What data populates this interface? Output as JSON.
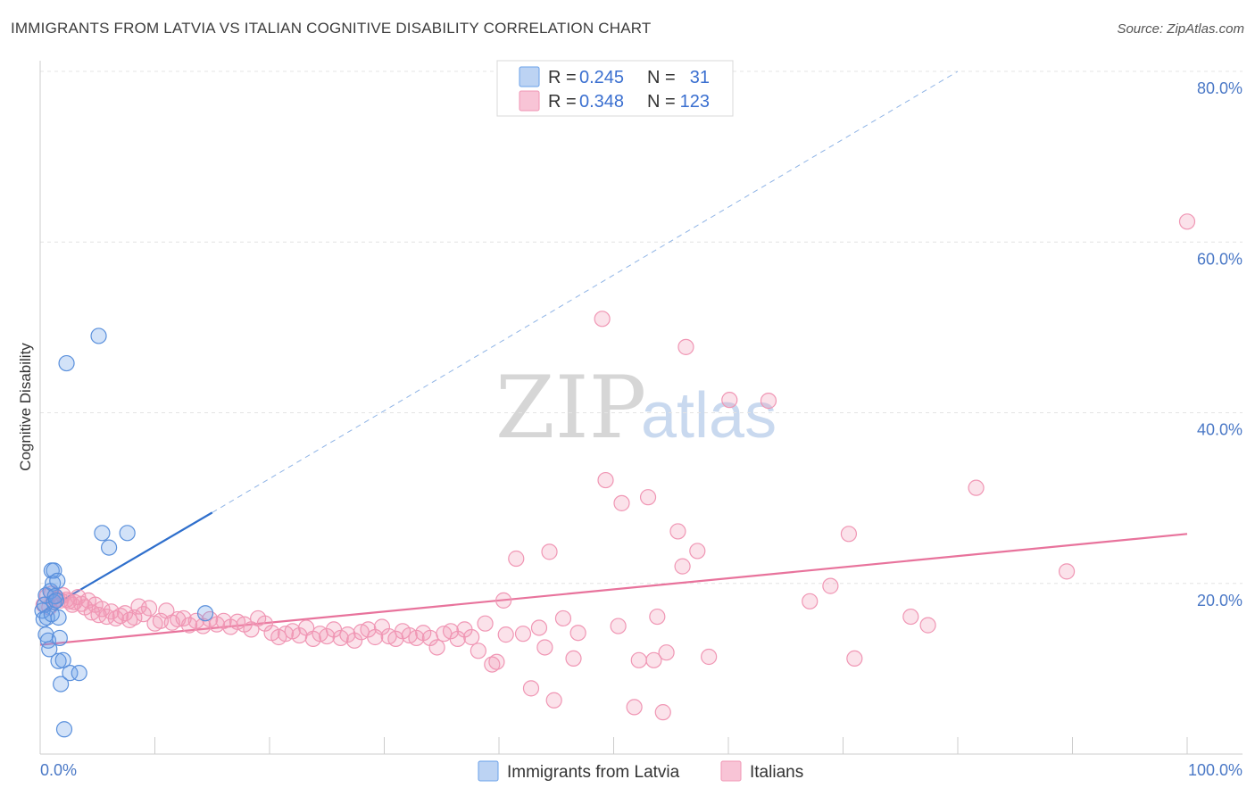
{
  "header": {
    "title": "IMMIGRANTS FROM LATVIA VS ITALIAN COGNITIVE DISABILITY CORRELATION CHART",
    "source": "Source: ZipAtlas.com"
  },
  "watermark": {
    "zip": "ZIP",
    "atlas": "atlas"
  },
  "legend": {
    "rows": [
      {
        "r_label": "R =",
        "r_value": "0.245",
        "n_label": "N =",
        "n_value": "31",
        "color": "#6aa0e8"
      },
      {
        "r_label": "R =",
        "r_value": "0.348",
        "n_label": "N =",
        "n_value": "123",
        "color": "#f096b4"
      }
    ]
  },
  "bottom_legend": [
    {
      "label": "Immigrants from Latvia",
      "color": "#6aa0e8"
    },
    {
      "label": "Italians",
      "color": "#f096b4"
    }
  ],
  "chart_data": {
    "type": "scatter",
    "title": "IMMIGRANTS FROM LATVIA VS ITALIAN COGNITIVE DISABILITY CORRELATION CHART",
    "xlabel": "",
    "ylabel": "Cognitive Disability",
    "xlim": [
      0,
      100
    ],
    "ylim": [
      0,
      80
    ],
    "x_tick_labels": [
      "0.0%",
      "100.0%"
    ],
    "y_ticks": [
      20,
      40,
      60,
      80
    ],
    "y_tick_labels": [
      "20.0%",
      "40.0%",
      "60.0%",
      "80.0%"
    ],
    "grid": true,
    "legend_position": "top-center",
    "series": [
      {
        "name": "Immigrants from Latvia",
        "color": "#6aa0e8",
        "trend": {
          "x": [
            0,
            15
          ],
          "y": [
            16.5,
            28.3
          ],
          "extended_x": [
            15,
            80
          ],
          "extended_y": [
            28.3,
            80
          ]
        },
        "points": [
          [
            0.2,
            16.8
          ],
          [
            0.3,
            15.8
          ],
          [
            0.4,
            17.5
          ],
          [
            0.5,
            14.0
          ],
          [
            0.5,
            18.6
          ],
          [
            0.6,
            16.0
          ],
          [
            0.7,
            13.3
          ],
          [
            0.8,
            12.3
          ],
          [
            0.9,
            19.1
          ],
          [
            1.0,
            16.4
          ],
          [
            1.0,
            21.5
          ],
          [
            1.1,
            20.0
          ],
          [
            1.2,
            17.8
          ],
          [
            1.2,
            21.5
          ],
          [
            1.3,
            18.5
          ],
          [
            1.4,
            18.0
          ],
          [
            1.5,
            20.3
          ],
          [
            1.6,
            10.9
          ],
          [
            1.6,
            16.0
          ],
          [
            1.7,
            13.6
          ],
          [
            1.8,
            8.2
          ],
          [
            2.0,
            11.0
          ],
          [
            2.1,
            2.9
          ],
          [
            2.3,
            45.8
          ],
          [
            2.6,
            9.5
          ],
          [
            3.4,
            9.5
          ],
          [
            5.1,
            49.0
          ],
          [
            5.4,
            25.9
          ],
          [
            6.0,
            24.2
          ],
          [
            7.6,
            25.9
          ],
          [
            14.4,
            16.5
          ]
        ]
      },
      {
        "name": "Italians",
        "color": "#f096b4",
        "trend": {
          "x": [
            0,
            100
          ],
          "y": [
            12.8,
            25.8
          ]
        },
        "points": [
          [
            0.3,
            17.5
          ],
          [
            0.6,
            18.5
          ],
          [
            0.8,
            17.2
          ],
          [
            1.0,
            18.8
          ],
          [
            1.2,
            17.8
          ],
          [
            1.5,
            18.2
          ],
          [
            1.8,
            18.0
          ],
          [
            2.0,
            18.6
          ],
          [
            2.3,
            18.1
          ],
          [
            2.5,
            17.9
          ],
          [
            2.8,
            17.5
          ],
          [
            3.0,
            17.8
          ],
          [
            3.3,
            18.4
          ],
          [
            3.6,
            17.6
          ],
          [
            3.9,
            17.2
          ],
          [
            4.2,
            18.0
          ],
          [
            4.5,
            16.6
          ],
          [
            4.8,
            17.5
          ],
          [
            5.1,
            16.3
          ],
          [
            5.4,
            17.0
          ],
          [
            5.8,
            16.1
          ],
          [
            6.2,
            16.7
          ],
          [
            6.6,
            15.9
          ],
          [
            7.0,
            16.2
          ],
          [
            7.4,
            16.5
          ],
          [
            7.8,
            15.7
          ],
          [
            8.2,
            16.0
          ],
          [
            8.6,
            17.3
          ],
          [
            9.0,
            16.4
          ],
          [
            9.5,
            17.1
          ],
          [
            10.0,
            15.3
          ],
          [
            10.5,
            15.6
          ],
          [
            11.0,
            16.8
          ],
          [
            11.5,
            15.4
          ],
          [
            12.0,
            15.8
          ],
          [
            12.5,
            15.9
          ],
          [
            13.0,
            15.1
          ],
          [
            13.6,
            15.6
          ],
          [
            14.2,
            15.0
          ],
          [
            14.8,
            15.8
          ],
          [
            15.4,
            15.2
          ],
          [
            16.0,
            15.6
          ],
          [
            16.6,
            14.9
          ],
          [
            17.2,
            15.5
          ],
          [
            17.8,
            15.2
          ],
          [
            18.4,
            14.6
          ],
          [
            19.0,
            15.9
          ],
          [
            19.6,
            15.3
          ],
          [
            20.2,
            14.2
          ],
          [
            20.8,
            13.7
          ],
          [
            21.4,
            14.1
          ],
          [
            22.0,
            14.4
          ],
          [
            22.6,
            13.9
          ],
          [
            23.2,
            14.8
          ],
          [
            23.8,
            13.5
          ],
          [
            24.4,
            14.1
          ],
          [
            25.0,
            13.8
          ],
          [
            25.6,
            14.6
          ],
          [
            26.2,
            13.6
          ],
          [
            26.8,
            14.0
          ],
          [
            27.4,
            13.3
          ],
          [
            28.0,
            14.3
          ],
          [
            28.6,
            14.6
          ],
          [
            29.2,
            13.7
          ],
          [
            29.8,
            14.9
          ],
          [
            30.4,
            13.8
          ],
          [
            31.0,
            13.5
          ],
          [
            31.6,
            14.4
          ],
          [
            32.2,
            13.9
          ],
          [
            32.8,
            13.6
          ],
          [
            33.4,
            14.2
          ],
          [
            34.0,
            13.6
          ],
          [
            34.6,
            12.5
          ],
          [
            35.2,
            14.1
          ],
          [
            35.8,
            14.4
          ],
          [
            36.4,
            13.5
          ],
          [
            37.0,
            14.6
          ],
          [
            37.6,
            13.7
          ],
          [
            38.2,
            12.1
          ],
          [
            38.8,
            15.3
          ],
          [
            39.4,
            10.5
          ],
          [
            39.8,
            10.8
          ],
          [
            40.4,
            18.0
          ],
          [
            40.6,
            14.0
          ],
          [
            41.5,
            22.9
          ],
          [
            42.1,
            14.1
          ],
          [
            42.8,
            7.7
          ],
          [
            43.5,
            14.8
          ],
          [
            44.0,
            12.5
          ],
          [
            44.4,
            23.7
          ],
          [
            44.8,
            6.3
          ],
          [
            45.6,
            15.9
          ],
          [
            46.5,
            11.2
          ],
          [
            46.9,
            14.2
          ],
          [
            49.0,
            51.0
          ],
          [
            49.3,
            32.1
          ],
          [
            50.4,
            15.0
          ],
          [
            50.7,
            29.4
          ],
          [
            51.8,
            5.5
          ],
          [
            52.2,
            11.0
          ],
          [
            53.0,
            30.1
          ],
          [
            53.5,
            11.0
          ],
          [
            53.8,
            16.1
          ],
          [
            54.3,
            4.9
          ],
          [
            54.6,
            11.9
          ],
          [
            55.6,
            26.1
          ],
          [
            56.0,
            22.0
          ],
          [
            56.3,
            47.7
          ],
          [
            57.3,
            23.8
          ],
          [
            58.3,
            11.4
          ],
          [
            60.1,
            41.5
          ],
          [
            63.5,
            41.4
          ],
          [
            67.1,
            17.9
          ],
          [
            68.9,
            19.7
          ],
          [
            70.5,
            25.8
          ],
          [
            71.0,
            11.2
          ],
          [
            75.9,
            16.1
          ],
          [
            77.4,
            15.1
          ],
          [
            81.6,
            31.2
          ],
          [
            89.5,
            21.4
          ],
          [
            100.0,
            62.4
          ]
        ]
      }
    ]
  }
}
